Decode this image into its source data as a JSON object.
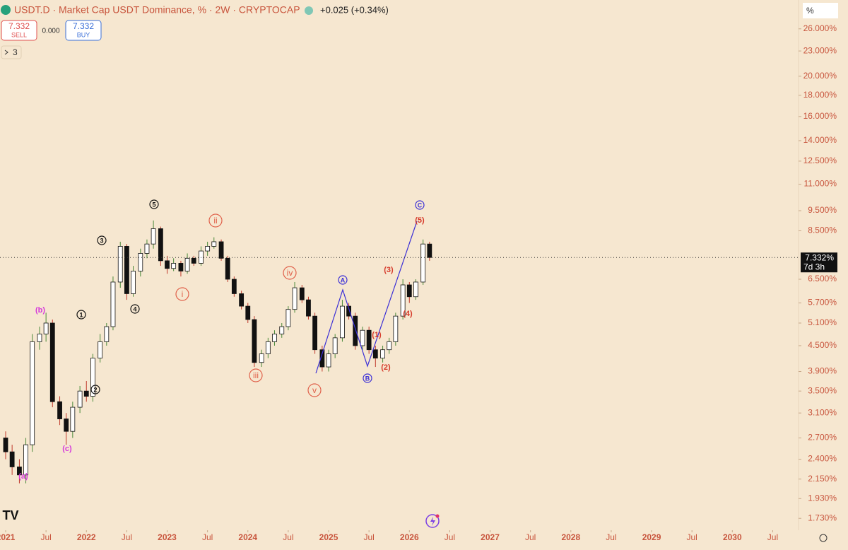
{
  "header": {
    "title": "USDT.D · Market Cap USDT Dominance, % · 2W · CRYPTOCAP",
    "change": "+0.025 (+0.34%)",
    "sell_price": "7.332",
    "sell_label": "SELL",
    "spread": "0.000",
    "buy_price": "7.332",
    "buy_label": "BUY",
    "indicators_count": "3",
    "scale_mode": "%"
  },
  "chart_data": {
    "type": "candlestick",
    "log_scale": true,
    "xlim": [
      2020.93,
      2030.82
    ],
    "xticks": [
      2021,
      {
        "value": 2021.5,
        "label": "Jul"
      },
      2022,
      {
        "value": 2022.5,
        "label": "Jul"
      },
      2023,
      {
        "value": 2023.5,
        "label": "Jul"
      },
      2024,
      {
        "value": 2024.5,
        "label": "Jul"
      },
      2025,
      {
        "value": 2025.5,
        "label": "Jul"
      },
      2026,
      {
        "value": 2026.5,
        "label": "Jul"
      },
      2027,
      {
        "value": 2027.5,
        "label": "Jul"
      },
      2028,
      {
        "value": 2028.5,
        "label": "Jul"
      },
      2029,
      {
        "value": 2029.5,
        "label": "Jul"
      },
      2030,
      {
        "value": 2030.5,
        "label": "Jul"
      }
    ],
    "ylim": [
      1.62,
      30.5
    ],
    "yticks": [
      {
        "value": 26,
        "label": "26.000%"
      },
      {
        "value": 23,
        "label": "23.000%"
      },
      {
        "value": 20,
        "label": "20.000%"
      },
      {
        "value": 18,
        "label": "18.000%"
      },
      {
        "value": 16,
        "label": "16.000%"
      },
      {
        "value": 14,
        "label": "14.000%"
      },
      {
        "value": 12.5,
        "label": "12.500%"
      },
      {
        "value": 11,
        "label": "11.000%"
      },
      {
        "value": 9.5,
        "label": "9.500%"
      },
      {
        "value": 8.5,
        "label": "8.500%"
      },
      {
        "value": 6.5,
        "label": "6.500%"
      },
      {
        "value": 5.7,
        "label": "5.700%"
      },
      {
        "value": 5.1,
        "label": "5.100%"
      },
      {
        "value": 4.5,
        "label": "4.500%"
      },
      {
        "value": 3.9,
        "label": "3.900%"
      },
      {
        "value": 3.5,
        "label": "3.500%"
      },
      {
        "value": 3.1,
        "label": "3.100%"
      },
      {
        "value": 2.7,
        "label": "2.700%"
      },
      {
        "value": 2.4,
        "label": "2.400%"
      },
      {
        "value": 2.15,
        "label": "2.150%"
      },
      {
        "value": 1.93,
        "label": "1.930%"
      },
      {
        "value": 1.73,
        "label": "1.730%"
      }
    ],
    "up_color": "#ffffff",
    "down_color": "#111111",
    "up_wick": "#4a8a3a",
    "down_wick": "#c0392b",
    "last_price": {
      "value": 7.332,
      "label": "7.332%"
    },
    "countdown": "7d 3h",
    "x": [
      2021.0,
      2021.08,
      2021.17,
      2021.25,
      2021.33,
      2021.42,
      2021.5,
      2021.58,
      2021.67,
      2021.75,
      2021.83,
      2021.92,
      2022.0,
      2022.08,
      2022.17,
      2022.25,
      2022.33,
      2022.42,
      2022.5,
      2022.58,
      2022.67,
      2022.75,
      2022.83,
      2022.92,
      2023.0,
      2023.08,
      2023.17,
      2023.25,
      2023.33,
      2023.42,
      2023.5,
      2023.58,
      2023.67,
      2023.75,
      2023.83,
      2023.92,
      2024.0,
      2024.08,
      2024.17,
      2024.25,
      2024.33,
      2024.42,
      2024.5,
      2024.58,
      2024.67,
      2024.75,
      2024.83,
      2024.92,
      2025.0,
      2025.08,
      2025.17,
      2025.25,
      2025.33,
      2025.42,
      2025.5,
      2025.58,
      2025.67,
      2025.75,
      2025.83,
      2025.92,
      2026.0,
      2026.08,
      2026.17,
      2026.25
    ],
    "open": [
      2.7,
      2.5,
      2.3,
      2.2,
      2.6,
      4.6,
      4.8,
      5.1,
      3.3,
      3.0,
      2.8,
      3.2,
      3.5,
      3.4,
      4.2,
      4.6,
      5.0,
      6.4,
      7.8,
      6.0,
      6.8,
      7.5,
      7.9,
      8.6,
      7.2,
      6.9,
      7.1,
      6.8,
      7.3,
      7.1,
      7.6,
      7.8,
      8.0,
      7.3,
      6.5,
      6.0,
      5.6,
      5.2,
      4.1,
      4.3,
      4.6,
      4.8,
      5.0,
      5.5,
      6.2,
      5.8,
      5.3,
      4.4,
      4.0,
      4.3,
      4.7,
      5.6,
      5.3,
      4.5,
      4.9,
      4.4,
      4.2,
      4.4,
      4.6,
      5.3,
      6.3,
      5.9,
      6.4,
      7.9
    ],
    "high": [
      2.8,
      2.6,
      2.4,
      2.7,
      4.8,
      5.0,
      5.4,
      5.2,
      3.4,
      3.1,
      3.3,
      3.6,
      3.7,
      4.3,
      4.8,
      5.1,
      6.6,
      8.0,
      7.9,
      7.0,
      7.7,
      8.1,
      9.0,
      8.7,
      7.4,
      7.3,
      7.2,
      7.5,
      7.4,
      7.8,
      8.0,
      8.2,
      8.1,
      7.4,
      6.6,
      6.1,
      5.7,
      5.3,
      4.4,
      4.7,
      4.9,
      5.1,
      5.6,
      6.4,
      6.3,
      5.9,
      5.4,
      4.5,
      4.4,
      4.8,
      5.8,
      5.7,
      5.4,
      5.0,
      5.0,
      4.5,
      4.5,
      4.7,
      5.4,
      6.5,
      6.4,
      6.5,
      8.1,
      8.0
    ],
    "low": [
      2.4,
      2.2,
      2.1,
      2.1,
      2.5,
      4.4,
      4.6,
      3.2,
      2.9,
      2.6,
      2.7,
      3.1,
      3.3,
      3.3,
      4.1,
      4.5,
      4.9,
      6.2,
      5.8,
      5.9,
      6.6,
      7.3,
      7.7,
      7.0,
      6.7,
      6.8,
      6.6,
      6.7,
      7.0,
      7.0,
      7.4,
      7.7,
      7.2,
      6.4,
      5.9,
      5.5,
      5.1,
      4.0,
      4.0,
      4.2,
      4.5,
      4.7,
      4.9,
      5.4,
      5.7,
      5.2,
      4.3,
      3.9,
      3.9,
      4.2,
      4.6,
      5.2,
      4.4,
      4.4,
      4.3,
      4.0,
      4.1,
      4.3,
      4.5,
      5.2,
      5.7,
      5.8,
      6.3,
      7.2
    ],
    "close": [
      2.5,
      2.3,
      2.2,
      2.6,
      4.6,
      4.8,
      5.1,
      3.3,
      3.0,
      2.8,
      3.2,
      3.5,
      3.4,
      4.2,
      4.6,
      5.0,
      6.4,
      7.8,
      6.0,
      6.8,
      7.5,
      7.9,
      8.6,
      7.2,
      6.9,
      7.1,
      6.8,
      7.3,
      7.1,
      7.6,
      7.8,
      8.0,
      7.3,
      6.5,
      6.0,
      5.6,
      5.2,
      4.1,
      4.3,
      4.6,
      4.8,
      5.0,
      5.5,
      6.2,
      5.8,
      5.3,
      4.4,
      4.0,
      4.3,
      4.7,
      5.6,
      5.3,
      4.5,
      4.9,
      4.4,
      4.2,
      4.4,
      4.6,
      5.3,
      6.3,
      5.9,
      6.4,
      7.9,
      7.332
    ],
    "wave_labels": [
      "1",
      "2",
      "3",
      "4",
      "5",
      "i",
      "ii",
      "iii",
      "iv",
      "v",
      "A",
      "B",
      "C",
      "(1)",
      "(2)",
      "(3)",
      "(4)",
      "(5)",
      "(b)",
      "(c)",
      "(a)"
    ]
  }
}
